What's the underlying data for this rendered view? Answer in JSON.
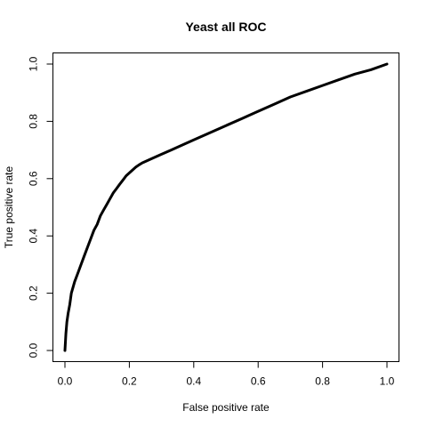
{
  "chart_data": {
    "type": "line",
    "title": "Yeast all ROC",
    "xlabel": "False positive rate",
    "ylabel": "True positive rate",
    "xlim": [
      0,
      1
    ],
    "ylim": [
      0,
      1
    ],
    "x_ticks": [
      0.0,
      0.2,
      0.4,
      0.6,
      0.8,
      1.0
    ],
    "y_ticks": [
      0.0,
      0.2,
      0.4,
      0.6,
      0.8,
      1.0
    ],
    "x_tick_labels": [
      "0.0",
      "0.2",
      "0.4",
      "0.6",
      "0.8",
      "1.0"
    ],
    "y_tick_labels": [
      "0.0",
      "0.2",
      "0.4",
      "0.6",
      "0.8",
      "1.0"
    ],
    "grid": false,
    "legend": "none",
    "line_color": "#000000",
    "series": [
      {
        "x": [
          0.0,
          0.003,
          0.006,
          0.01,
          0.015,
          0.02,
          0.03,
          0.04,
          0.05,
          0.06,
          0.07,
          0.08,
          0.09,
          0.1,
          0.11,
          0.12,
          0.13,
          0.14,
          0.15,
          0.16,
          0.17,
          0.18,
          0.19,
          0.2,
          0.21,
          0.22,
          0.23,
          0.24,
          0.25,
          0.27,
          0.3,
          0.33,
          0.36,
          0.4,
          0.45,
          0.5,
          0.55,
          0.6,
          0.65,
          0.7,
          0.75,
          0.8,
          0.85,
          0.9,
          0.95,
          1.0
        ],
        "y": [
          0.0,
          0.06,
          0.1,
          0.13,
          0.16,
          0.2,
          0.24,
          0.27,
          0.3,
          0.33,
          0.36,
          0.39,
          0.42,
          0.44,
          0.47,
          0.49,
          0.51,
          0.53,
          0.55,
          0.565,
          0.58,
          0.595,
          0.61,
          0.62,
          0.63,
          0.64,
          0.648,
          0.655,
          0.66,
          0.67,
          0.685,
          0.7,
          0.715,
          0.735,
          0.76,
          0.785,
          0.81,
          0.835,
          0.86,
          0.885,
          0.905,
          0.925,
          0.945,
          0.965,
          0.98,
          1.0
        ]
      }
    ]
  }
}
